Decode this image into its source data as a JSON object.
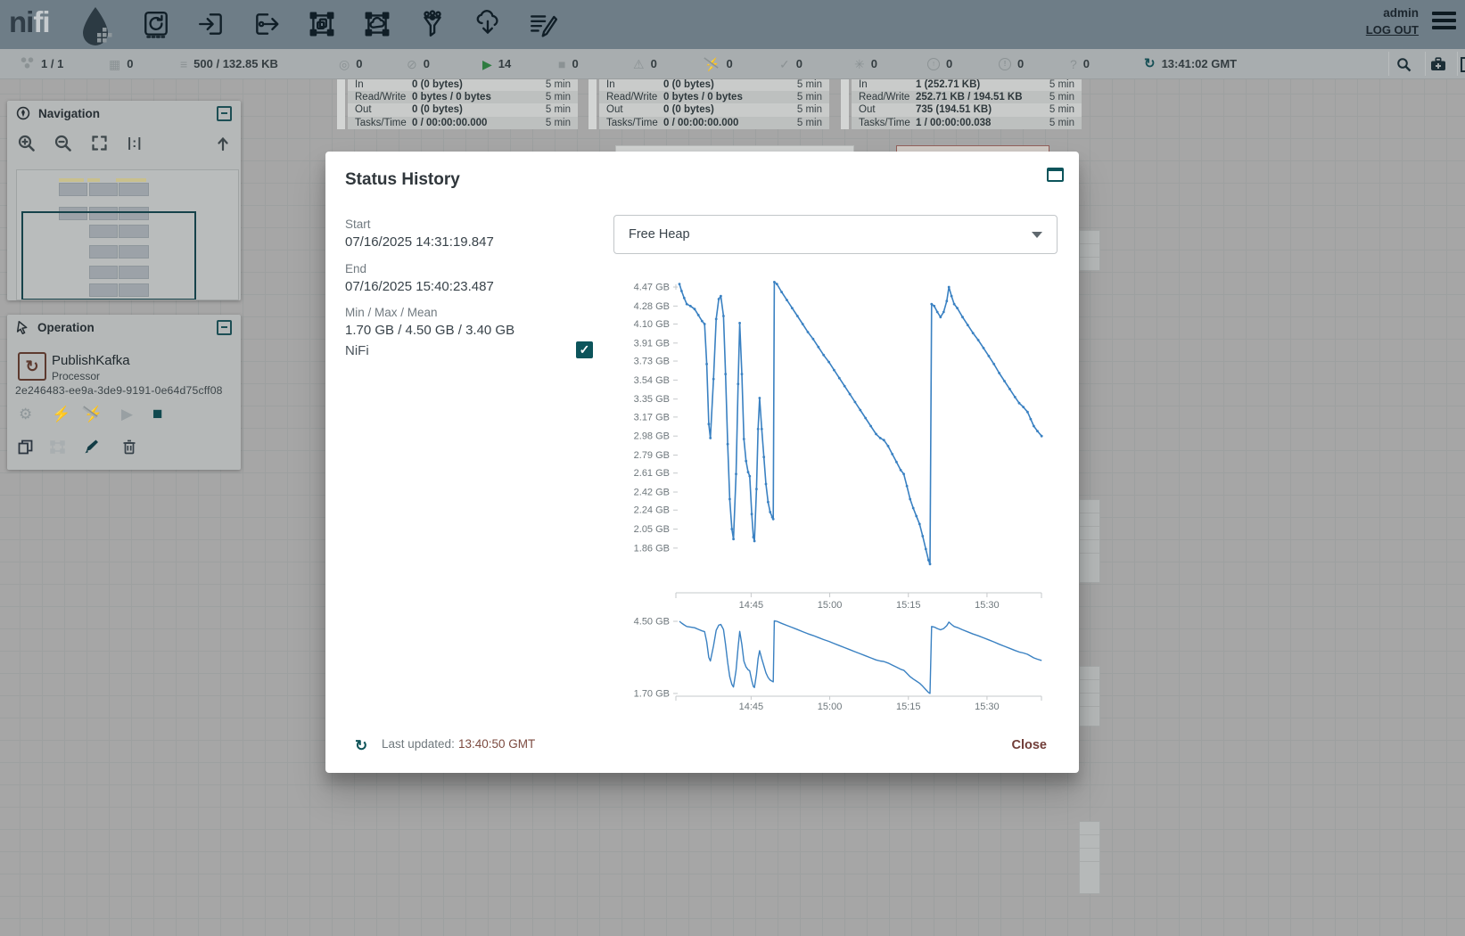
{
  "header": {
    "logo": {
      "ni": "ni",
      "fi": "fi"
    },
    "user": "admin",
    "logout": "LOG OUT",
    "toolbar_icons": [
      "processor-icon",
      "input-port-icon",
      "output-port-icon",
      "process-group-icon",
      "remote-process-group-icon",
      "funnel-icon",
      "template-icon",
      "label-icon"
    ]
  },
  "status_bar": {
    "items": [
      {
        "name": "cluster-icon",
        "glyph": "svg-cluster",
        "value": "1 / 1"
      },
      {
        "name": "counts-icon",
        "glyph": "▦",
        "value": "0"
      },
      {
        "name": "queued-icon",
        "glyph": "≡",
        "value": "500 / 132.85 KB"
      },
      {
        "name": "transmitting-icon",
        "glyph": "◎",
        "value": "0"
      },
      {
        "name": "not-transmitting-icon",
        "glyph": "⊘",
        "value": "0"
      },
      {
        "name": "running-icon",
        "glyph": "▶",
        "value": "14",
        "color": "#2e7c40"
      },
      {
        "name": "stopped-icon",
        "glyph": "■",
        "value": "0"
      },
      {
        "name": "invalid-icon",
        "glyph": "⚠",
        "value": "0"
      },
      {
        "name": "disabled-icon",
        "glyph": "⚡",
        "value": "0",
        "slashed": true
      },
      {
        "name": "up-to-date-icon",
        "glyph": "✓",
        "value": "0"
      },
      {
        "name": "locally-modified-icon",
        "glyph": "✳",
        "value": "0"
      },
      {
        "name": "stale-icon",
        "glyph": "↑",
        "value": "0",
        "circled": true
      },
      {
        "name": "locally-modified-stale-icon",
        "glyph": "!",
        "value": "0",
        "circled": true
      },
      {
        "name": "sync-failure-icon",
        "glyph": "?",
        "value": "0"
      }
    ],
    "refresh_time": "13:41:02 GMT"
  },
  "canvas": {
    "tables": [
      {
        "rows": [
          {
            "label": "In",
            "value": "0 (0 bytes)",
            "window": "5 min"
          },
          {
            "label": "Read/Write",
            "value": "0 bytes / 0 bytes",
            "window": "5 min"
          },
          {
            "label": "Out",
            "value": "0 (0 bytes)",
            "window": "5 min"
          },
          {
            "label": "Tasks/Time",
            "value": "0 / 00:00:00.000",
            "window": "5 min"
          }
        ]
      },
      {
        "rows": [
          {
            "label": "In",
            "value": "0 (0 bytes)",
            "window": "5 min"
          },
          {
            "label": "Read/Write",
            "value": "0 bytes / 0 bytes",
            "window": "5 min"
          },
          {
            "label": "Out",
            "value": "0 (0 bytes)",
            "window": "5 min"
          },
          {
            "label": "Tasks/Time",
            "value": "0 / 00:00:00.000",
            "window": "5 min"
          }
        ]
      },
      {
        "rows": [
          {
            "label": "In",
            "value": "1 (252.71 KB)",
            "window": "5 min"
          },
          {
            "label": "Read/Write",
            "value": "252.71 KB / 194.51 KB",
            "window": "5 min"
          },
          {
            "label": "Out",
            "value": "735 (194.51 KB)",
            "window": "5 min"
          },
          {
            "label": "Tasks/Time",
            "value": "1 / 00:00:00.038",
            "window": "5 min"
          }
        ]
      }
    ]
  },
  "navigation": {
    "title": "Navigation"
  },
  "operation": {
    "title": "Operation",
    "component_name": "PublishKafka",
    "component_type": "Processor",
    "component_id": "2e246483-ee9a-3de9-9191-0e64d75cff08"
  },
  "modal": {
    "title": "Status History",
    "start_label": "Start",
    "start_value": "07/16/2025 14:31:19.847",
    "end_label": "End",
    "end_value": "07/16/2025 15:40:23.487",
    "minmax_label": "Min / Max / Mean",
    "minmax_value": "1.70 GB / 4.50 GB / 3.40 GB",
    "series_label": "NiFi",
    "metric_selected": "Free Heap",
    "last_updated_label": "Last updated:",
    "last_updated_value": "13:40:50 GMT",
    "close_label": "Close"
  },
  "chart_data": {
    "type": "line",
    "title": "Free Heap",
    "y_suffix": " GB",
    "line_color": "#3a81c2",
    "start": "07/16/2025 14:31:19.847",
    "end": "07/16/2025 15:40:23.487",
    "x_range_minutes": [
      0,
      69.1
    ],
    "x_ticks": [
      {
        "t": 13.67,
        "label": "14:45"
      },
      {
        "t": 28.67,
        "label": "15:00"
      },
      {
        "t": 43.67,
        "label": "15:15"
      },
      {
        "t": 58.67,
        "label": "15:30"
      }
    ],
    "main": {
      "y_ticks": [
        4.47,
        4.28,
        4.1,
        3.91,
        3.73,
        3.54,
        3.35,
        3.17,
        2.98,
        2.79,
        2.61,
        2.42,
        2.24,
        2.05,
        1.86
      ],
      "ylim": [
        1.7,
        4.56
      ]
    },
    "overview": {
      "y_ticks": [
        4.5,
        1.7
      ],
      "ylim": [
        1.7,
        4.5
      ]
    },
    "stats": {
      "min": "1.70 GB",
      "max": "4.50 GB",
      "mean": "3.40 GB"
    },
    "series": [
      {
        "name": "NiFi",
        "unit": "GB",
        "points": [
          [
            0,
            4.5
          ],
          [
            0.4,
            4.43
          ],
          [
            0.9,
            4.36
          ],
          [
            1.4,
            4.3
          ],
          [
            2.1,
            4.28
          ],
          [
            2.9,
            4.25
          ],
          [
            3.6,
            4.19
          ],
          [
            4.3,
            4.13
          ],
          [
            4.8,
            4.1
          ],
          [
            5.2,
            3.7
          ],
          [
            5.6,
            3.1
          ],
          [
            5.9,
            2.96
          ],
          [
            6.5,
            3.55
          ],
          [
            7.0,
            4.15
          ],
          [
            7.5,
            4.35
          ],
          [
            7.9,
            4.38
          ],
          [
            8.4,
            4.18
          ],
          [
            8.8,
            3.6
          ],
          [
            9.2,
            2.9
          ],
          [
            9.6,
            2.35
          ],
          [
            10.0,
            2.05
          ],
          [
            10.3,
            1.95
          ],
          [
            10.8,
            2.6
          ],
          [
            11.2,
            3.5
          ],
          [
            11.5,
            4.11
          ],
          [
            11.9,
            3.6
          ],
          [
            12.3,
            2.95
          ],
          [
            12.7,
            2.73
          ],
          [
            13.1,
            2.62
          ],
          [
            13.4,
            2.58
          ],
          [
            13.8,
            2.2
          ],
          [
            14.1,
            1.97
          ],
          [
            14.3,
            1.93
          ],
          [
            14.7,
            2.45
          ],
          [
            15.0,
            3.05
          ],
          [
            15.3,
            3.36
          ],
          [
            15.7,
            3.05
          ],
          [
            16.1,
            2.77
          ],
          [
            16.5,
            2.5
          ],
          [
            16.9,
            2.32
          ],
          [
            17.3,
            2.22
          ],
          [
            17.7,
            2.17
          ],
          [
            17.9,
            2.15
          ],
          [
            18.1,
            4.52
          ],
          [
            18.6,
            4.5
          ],
          [
            19.5,
            4.42
          ],
          [
            20.5,
            4.34
          ],
          [
            21.5,
            4.26
          ],
          [
            22.5,
            4.18
          ],
          [
            23.5,
            4.1
          ],
          [
            24.5,
            4.02
          ],
          [
            25.5,
            3.95
          ],
          [
            26.5,
            3.87
          ],
          [
            27.5,
            3.79
          ],
          [
            28.5,
            3.72
          ],
          [
            29.5,
            3.64
          ],
          [
            30.5,
            3.56
          ],
          [
            31.5,
            3.48
          ],
          [
            32.5,
            3.4
          ],
          [
            33.5,
            3.32
          ],
          [
            34.5,
            3.24
          ],
          [
            35.5,
            3.16
          ],
          [
            36.5,
            3.08
          ],
          [
            37.5,
            3.0
          ],
          [
            38.3,
            2.96
          ],
          [
            39.0,
            2.94
          ],
          [
            39.8,
            2.88
          ],
          [
            40.6,
            2.8
          ],
          [
            41.4,
            2.72
          ],
          [
            42.2,
            2.64
          ],
          [
            42.8,
            2.6
          ],
          [
            43.4,
            2.48
          ],
          [
            44.0,
            2.35
          ],
          [
            44.6,
            2.26
          ],
          [
            45.2,
            2.18
          ],
          [
            45.8,
            2.1
          ],
          [
            46.4,
            1.98
          ],
          [
            47.0,
            1.85
          ],
          [
            47.5,
            1.74
          ],
          [
            47.8,
            1.7
          ],
          [
            48.1,
            4.3
          ],
          [
            48.6,
            4.28
          ],
          [
            49.2,
            4.22
          ],
          [
            49.8,
            4.17
          ],
          [
            50.4,
            4.22
          ],
          [
            51.0,
            4.33
          ],
          [
            51.4,
            4.47
          ],
          [
            51.9,
            4.38
          ],
          [
            52.4,
            4.3
          ],
          [
            53.0,
            4.26
          ],
          [
            54.0,
            4.17
          ],
          [
            55.0,
            4.09
          ],
          [
            56.0,
            4.01
          ],
          [
            57.0,
            3.94
          ],
          [
            58.0,
            3.86
          ],
          [
            59.0,
            3.78
          ],
          [
            60.0,
            3.7
          ],
          [
            61.0,
            3.61
          ],
          [
            62.0,
            3.53
          ],
          [
            63.0,
            3.45
          ],
          [
            64.0,
            3.37
          ],
          [
            64.8,
            3.31
          ],
          [
            65.6,
            3.27
          ],
          [
            66.4,
            3.22
          ],
          [
            67.0,
            3.15
          ],
          [
            67.6,
            3.08
          ],
          [
            68.3,
            3.03
          ],
          [
            69.1,
            2.98
          ]
        ]
      }
    ]
  }
}
